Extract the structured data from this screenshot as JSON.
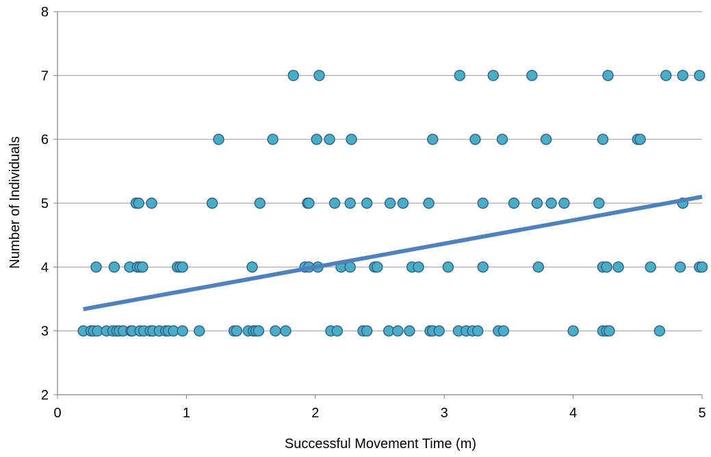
{
  "chart_data": {
    "type": "scatter",
    "title": "",
    "xlabel": "Successful Movement Time (m)",
    "ylabel": "Number of Individuals",
    "xlim": [
      0,
      5
    ],
    "ylim": [
      2,
      8
    ],
    "xticks": [
      0,
      1,
      2,
      3,
      4,
      5
    ],
    "yticks": [
      2,
      3,
      4,
      5,
      6,
      7,
      8
    ],
    "grid": "horizontal",
    "legend": "none",
    "colors": {
      "marker_fill": "#4BACC6",
      "marker_edge": "#2C5F8A",
      "trend": "#4F81BD",
      "grid": "#A6A6A6",
      "axis": "#808080"
    },
    "series": [
      {
        "marker": "circle",
        "points": [
          [
            0.2,
            3
          ],
          [
            0.26,
            3
          ],
          [
            0.28,
            3
          ],
          [
            0.31,
            3
          ],
          [
            0.38,
            3
          ],
          [
            0.43,
            3
          ],
          [
            0.46,
            3
          ],
          [
            0.48,
            3
          ],
          [
            0.51,
            3
          ],
          [
            0.57,
            3
          ],
          [
            0.58,
            3
          ],
          [
            0.64,
            3
          ],
          [
            0.67,
            3
          ],
          [
            0.72,
            3
          ],
          [
            0.74,
            3
          ],
          [
            0.79,
            3
          ],
          [
            0.84,
            3
          ],
          [
            0.86,
            3
          ],
          [
            0.9,
            3
          ],
          [
            0.97,
            3
          ],
          [
            1.1,
            3
          ],
          [
            1.37,
            3
          ],
          [
            1.39,
            3
          ],
          [
            1.48,
            3
          ],
          [
            1.52,
            3
          ],
          [
            1.54,
            3
          ],
          [
            1.56,
            3
          ],
          [
            1.69,
            3
          ],
          [
            1.77,
            3
          ],
          [
            2.12,
            3
          ],
          [
            2.17,
            3
          ],
          [
            2.37,
            3
          ],
          [
            2.4,
            3
          ],
          [
            2.57,
            3
          ],
          [
            2.64,
            3
          ],
          [
            2.73,
            3
          ],
          [
            2.89,
            3
          ],
          [
            2.91,
            3
          ],
          [
            2.96,
            3
          ],
          [
            3.11,
            3
          ],
          [
            3.17,
            3
          ],
          [
            3.22,
            3
          ],
          [
            3.26,
            3
          ],
          [
            3.42,
            3
          ],
          [
            3.46,
            3
          ],
          [
            4.0,
            3
          ],
          [
            4.23,
            3
          ],
          [
            4.26,
            3
          ],
          [
            4.28,
            3
          ],
          [
            4.67,
            3
          ],
          [
            0.3,
            4
          ],
          [
            0.44,
            4
          ],
          [
            0.56,
            4
          ],
          [
            0.62,
            4
          ],
          [
            0.64,
            4
          ],
          [
            0.66,
            4
          ],
          [
            0.93,
            4
          ],
          [
            0.95,
            4
          ],
          [
            0.97,
            4
          ],
          [
            1.51,
            4
          ],
          [
            1.92,
            4
          ],
          [
            1.95,
            4
          ],
          [
            2.02,
            4
          ],
          [
            2.2,
            4
          ],
          [
            2.27,
            4
          ],
          [
            2.46,
            4
          ],
          [
            2.48,
            4
          ],
          [
            2.75,
            4
          ],
          [
            2.8,
            4
          ],
          [
            3.03,
            4
          ],
          [
            3.3,
            4
          ],
          [
            3.73,
            4
          ],
          [
            4.23,
            4
          ],
          [
            4.26,
            4
          ],
          [
            4.35,
            4
          ],
          [
            4.6,
            4
          ],
          [
            4.83,
            4
          ],
          [
            4.98,
            4
          ],
          [
            5.0,
            4
          ],
          [
            0.61,
            5
          ],
          [
            0.63,
            5
          ],
          [
            0.73,
            5
          ],
          [
            1.2,
            5
          ],
          [
            1.57,
            5
          ],
          [
            1.94,
            5
          ],
          [
            1.95,
            5
          ],
          [
            2.15,
            5
          ],
          [
            2.27,
            5
          ],
          [
            2.4,
            5
          ],
          [
            2.58,
            5
          ],
          [
            2.68,
            5
          ],
          [
            2.88,
            5
          ],
          [
            3.3,
            5
          ],
          [
            3.54,
            5
          ],
          [
            3.72,
            5
          ],
          [
            3.83,
            5
          ],
          [
            3.93,
            5
          ],
          [
            4.2,
            5
          ],
          [
            4.85,
            5
          ],
          [
            1.25,
            6
          ],
          [
            1.67,
            6
          ],
          [
            2.01,
            6
          ],
          [
            2.11,
            6
          ],
          [
            2.28,
            6
          ],
          [
            2.91,
            6
          ],
          [
            3.24,
            6
          ],
          [
            3.45,
            6
          ],
          [
            3.79,
            6
          ],
          [
            4.23,
            6
          ],
          [
            4.5,
            6
          ],
          [
            4.52,
            6
          ],
          [
            1.83,
            7
          ],
          [
            2.03,
            7
          ],
          [
            3.12,
            7
          ],
          [
            3.38,
            7
          ],
          [
            3.68,
            7
          ],
          [
            4.27,
            7
          ],
          [
            4.72,
            7
          ],
          [
            4.85,
            7
          ],
          [
            4.98,
            7
          ]
        ]
      }
    ],
    "trendline": {
      "type": "linear",
      "from": [
        0.2,
        3.34
      ],
      "to": [
        5.0,
        5.1
      ]
    }
  }
}
